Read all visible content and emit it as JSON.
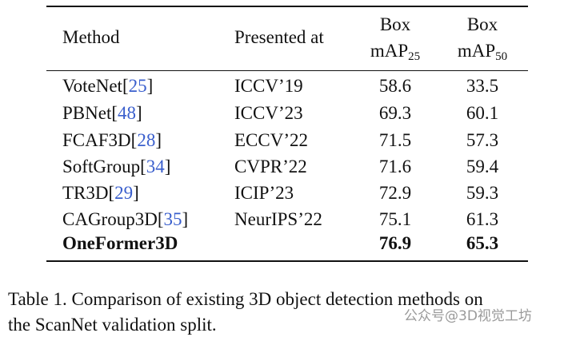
{
  "table": {
    "header": [
      {
        "line1": "Method"
      },
      {
        "line1": "Presented at"
      },
      {
        "line1": "Box",
        "line2": "mAP",
        "sub": "25"
      },
      {
        "line1": "Box",
        "line2": "mAP",
        "sub": "50"
      }
    ],
    "rows": [
      {
        "method": [
          "VoteNet[",
          "25",
          "]"
        ],
        "venue": "ICCV’19",
        "ap25": 58.6,
        "ap50": 33.5
      },
      {
        "method": [
          "PBNet[",
          "48",
          "]"
        ],
        "venue": "ICCV’23",
        "ap25": 69.3,
        "ap50": 60.1
      },
      {
        "method": [
          "FCAF3D[",
          "28",
          "]"
        ],
        "venue": "ECCV’22",
        "ap25": 71.5,
        "ap50": 57.3
      },
      {
        "method": [
          "SoftGroup[",
          "34",
          "]"
        ],
        "venue": "CVPR’22",
        "ap25": 71.6,
        "ap50": 59.4
      },
      {
        "method": [
          "TR3D[",
          "29",
          "]"
        ],
        "venue": "ICIP’23",
        "ap25": 72.9,
        "ap50": 59.3
      },
      {
        "method": [
          "CAGroup3D[",
          "35",
          "]"
        ],
        "venue": "NeurIPS’22",
        "ap25": 75.1,
        "ap50": 61.3
      },
      {
        "method": [
          "OneFormer3D"
        ],
        "venue": "",
        "ap25": 76.9,
        "ap50": 65.3,
        "bold": true
      }
    ]
  },
  "caption": [
    "Table 1.  Comparison of existing 3D object detection methods on",
    "the ScanNet validation split."
  ],
  "watermark": "公众号@3D视觉工坊"
}
